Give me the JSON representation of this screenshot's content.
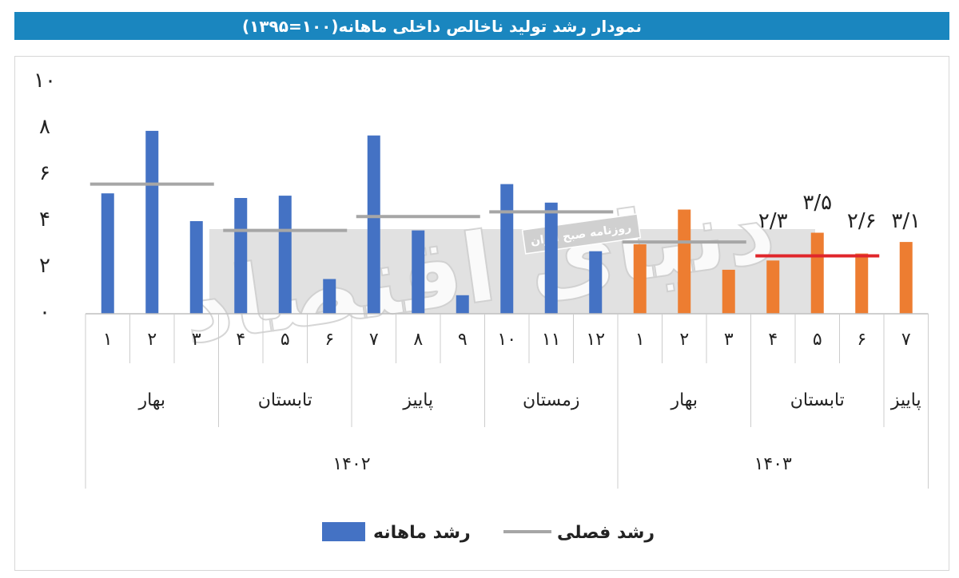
{
  "title": "نمودار رشد تولید ناخالص داخلی ماهانه(۱۰۰=۱۳۹۵)",
  "watermark": {
    "main": "دنیای اقتصاد",
    "sub": "روزنامه صبح ایران"
  },
  "colors": {
    "title_bg": "#1a86bf",
    "monthly_1402": "#4472c4",
    "monthly_1403": "#ed7d31",
    "seasonal_line": "#a6a6a6",
    "seasonal_line_highlight": "#e0262b"
  },
  "chart_data": {
    "type": "bar",
    "ylim": [
      0,
      10
    ],
    "yticks": [
      "۰",
      "۲",
      "۴",
      "۶",
      "۸",
      "۱۰"
    ],
    "months": [
      "۱",
      "۲",
      "۳",
      "۴",
      "۵",
      "۶",
      "۷",
      "۸",
      "۹",
      "۱۰",
      "۱۱",
      "۱۲",
      "۱",
      "۲",
      "۳",
      "۴",
      "۵",
      "۶",
      "۷"
    ],
    "seasons": [
      {
        "name": "بهار",
        "months": 3
      },
      {
        "name": "تابستان",
        "months": 3
      },
      {
        "name": "پاییز",
        "months": 3
      },
      {
        "name": "زمستان",
        "months": 3
      },
      {
        "name": "بهار",
        "months": 3
      },
      {
        "name": "تابستان",
        "months": 3
      },
      {
        "name": "پاییز",
        "months": 1
      }
    ],
    "years": [
      {
        "name": "۱۴۰۲",
        "months": 12
      },
      {
        "name": "۱۴۰۳",
        "months": 7
      }
    ],
    "series": [
      {
        "name": "رشد ماهانه",
        "values": [
          5.2,
          7.9,
          4.0,
          5.0,
          5.1,
          1.5,
          7.7,
          3.6,
          0.8,
          5.6,
          4.8,
          2.7,
          3.0,
          4.5,
          1.9,
          2.3,
          3.5,
          2.6,
          3.1
        ],
        "data_labels": [
          "",
          "",
          "",
          "",
          "",
          "",
          "",
          "",
          "",
          "",
          "",
          "",
          "",
          "",
          "",
          "۲/۳",
          "۳/۵",
          "۲/۶",
          "۳/۱"
        ]
      },
      {
        "name": "رشد فصلی",
        "season_values": [
          5.6,
          3.6,
          4.2,
          4.4,
          3.1,
          2.5
        ]
      }
    ],
    "legend": {
      "position": "bottom",
      "monthly_label": "رشد ماهانه",
      "seasonal_label": "رشد فصلی"
    }
  }
}
